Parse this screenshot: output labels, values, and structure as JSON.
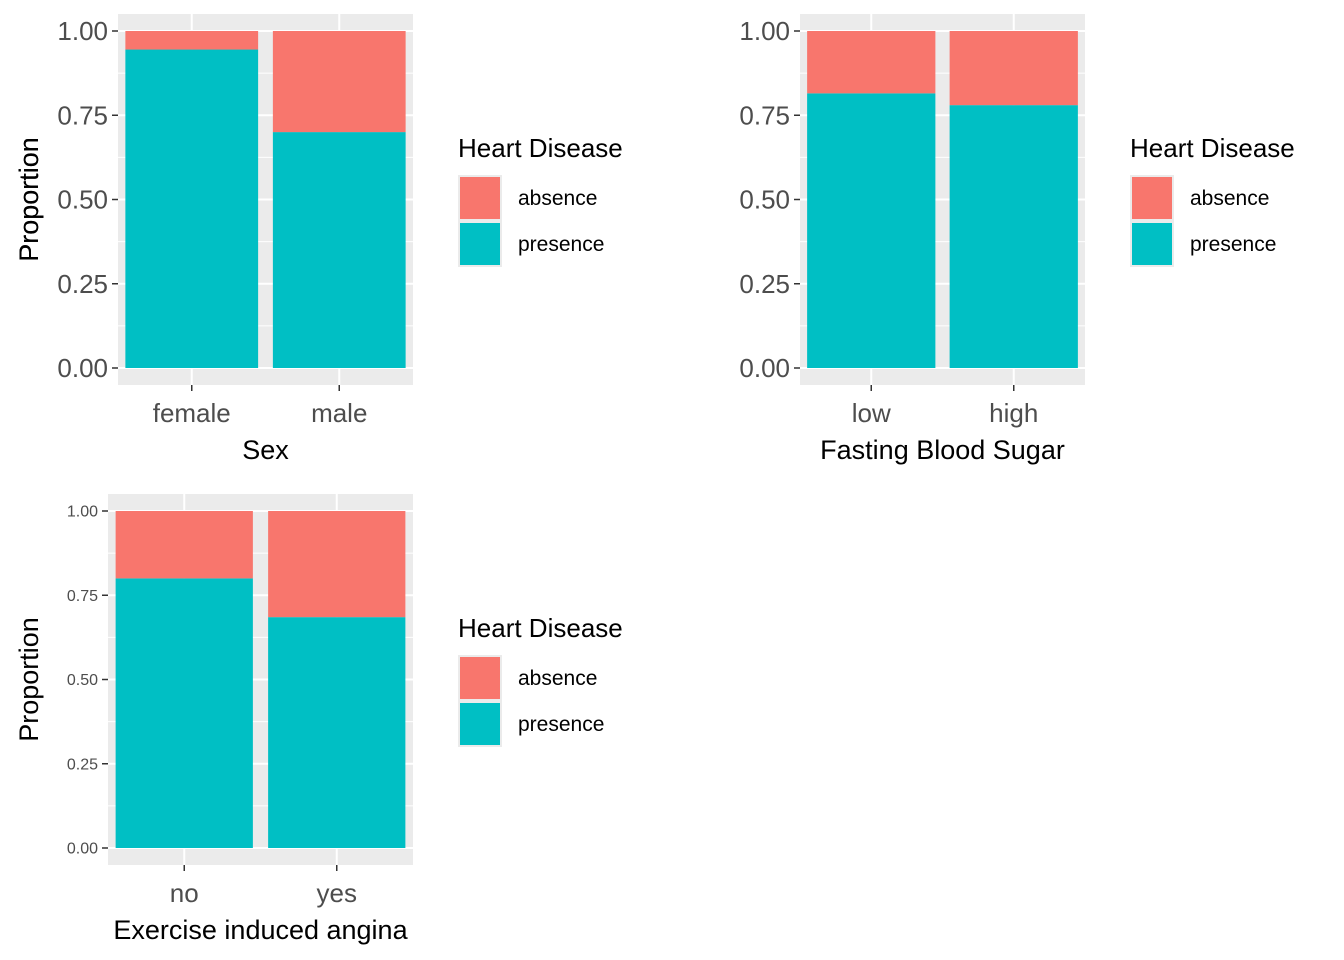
{
  "chart_data": [
    {
      "type": "bar",
      "stacked": true,
      "xlabel": "Sex",
      "ylabel": "Proportion",
      "ylim": [
        0,
        1
      ],
      "yticks": [
        "0.00",
        "0.25",
        "0.50",
        "0.75",
        "1.00"
      ],
      "categories": [
        "female",
        "male"
      ],
      "series": [
        {
          "name": "presence",
          "values": [
            0.945,
            0.7
          ]
        },
        {
          "name": "absence",
          "values": [
            0.055,
            0.3
          ]
        }
      ],
      "legend": {
        "title": "Heart Disease",
        "position": "right",
        "entries": [
          "absence",
          "presence"
        ]
      },
      "grid": true
    },
    {
      "type": "bar",
      "stacked": true,
      "xlabel": "Fasting Blood Sugar",
      "ylabel": "Proportion",
      "ylim": [
        0,
        1
      ],
      "yticks": [
        "0.00",
        "0.25",
        "0.50",
        "0.75",
        "1.00"
      ],
      "categories": [
        "low",
        "high"
      ],
      "series": [
        {
          "name": "presence",
          "values": [
            0.815,
            0.78
          ]
        },
        {
          "name": "absence",
          "values": [
            0.185,
            0.22
          ]
        }
      ],
      "legend": {
        "title": "Heart Disease",
        "position": "right",
        "entries": [
          "absence",
          "presence"
        ]
      },
      "grid": true
    },
    {
      "type": "bar",
      "stacked": true,
      "xlabel": "Exercise induced angina",
      "ylabel": "Proportion",
      "ylim": [
        0,
        1
      ],
      "yticks": [
        "0.00",
        "0.25",
        "0.50",
        "0.75",
        "1.00"
      ],
      "categories": [
        "no",
        "yes"
      ],
      "series": [
        {
          "name": "presence",
          "values": [
            0.8,
            0.685
          ]
        },
        {
          "name": "absence",
          "values": [
            0.2,
            0.315
          ]
        }
      ],
      "legend": {
        "title": "Heart Disease",
        "position": "right",
        "entries": [
          "absence",
          "presence"
        ]
      },
      "grid": true
    }
  ],
  "colors": {
    "absence": "#F8766D",
    "presence": "#00BFC4",
    "panel": "#EBEBEB",
    "grid": "#FFFFFF",
    "tick_text": "#4D4D4D",
    "title_text": "#000000"
  }
}
